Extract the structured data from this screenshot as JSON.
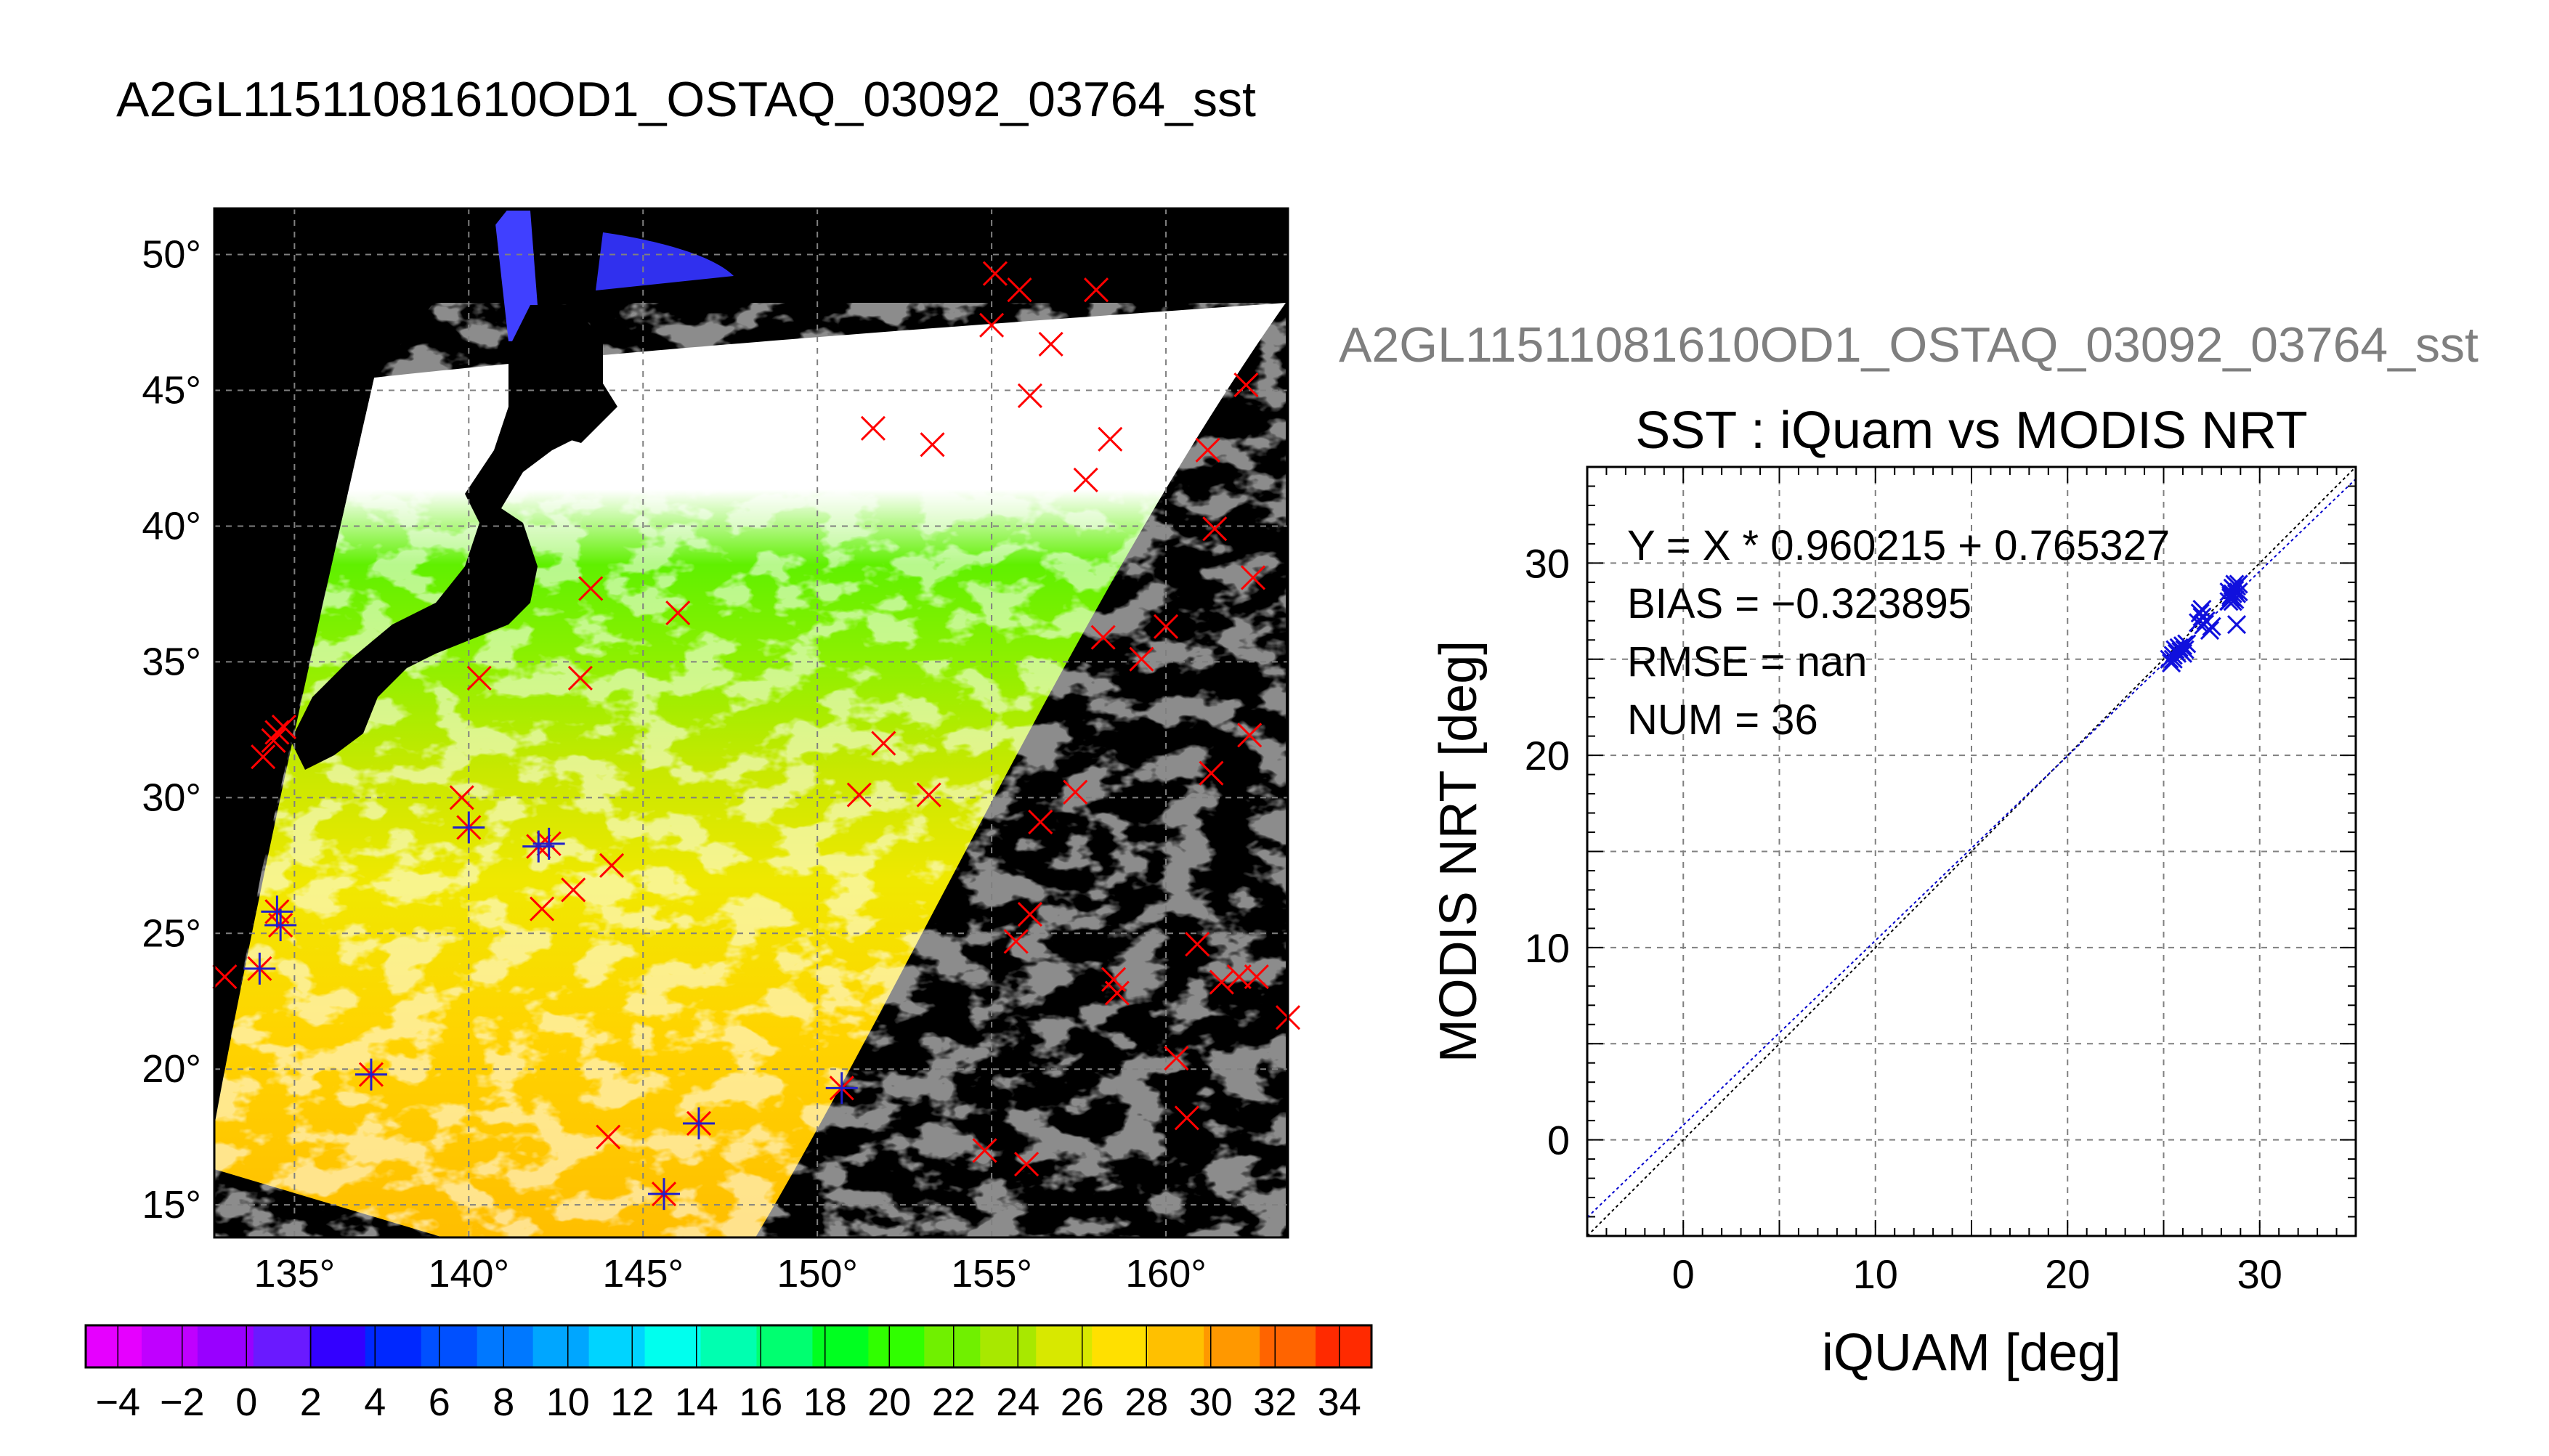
{
  "page_title": "A2GL11511081610OD1_OSTAQ_03092_03764_sst",
  "right_title": "A2GL11511081610OD1_OSTAQ_03092_03764_sst",
  "chart_data": [
    {
      "type": "map",
      "title": "A2GL11511081610OD1_OSTAQ_03092_03764_sst",
      "lon_range": [
        132.7,
        163.5
      ],
      "lat_range": [
        13.8,
        51.7
      ],
      "lon_ticks": [
        135,
        140,
        145,
        150,
        155,
        160
      ],
      "lat_ticks": [
        15,
        20,
        25,
        30,
        35,
        40,
        45,
        50
      ],
      "lon_tick_labels": [
        "135°",
        "140°",
        "145°",
        "150°",
        "155°",
        "160°"
      ],
      "lat_tick_labels": [
        "15°",
        "20°",
        "25°",
        "30°",
        "35°",
        "40°",
        "45°",
        "50°"
      ],
      "grid": true,
      "colorbar": {
        "min": -5,
        "max": 35,
        "step": 2,
        "tick_labels": [
          "−4",
          "−2",
          "0",
          "2",
          "4",
          "6",
          "8",
          "10",
          "12",
          "14",
          "16",
          "18",
          "20",
          "22",
          "24",
          "26",
          "28",
          "30",
          "32",
          "34"
        ],
        "colors": [
          "#e600ff",
          "#c000ff",
          "#9900ff",
          "#6a1aff",
          "#3300ff",
          "#0028ff",
          "#0050ff",
          "#0078ff",
          "#00a6ff",
          "#00d4ff",
          "#00ffee",
          "#00ffb0",
          "#00ff70",
          "#00ff20",
          "#30ff00",
          "#70f000",
          "#a8e800",
          "#d8e800",
          "#ffe000",
          "#ffc000",
          "#ff9800",
          "#ff6400",
          "#ff2a00"
        ]
      },
      "markers_x": [
        [
          133.0,
          23.4
        ],
        [
          134.0,
          23.7
        ],
        [
          134.5,
          25.8
        ],
        [
          134.6,
          25.3
        ],
        [
          134.1,
          31.5
        ],
        [
          134.4,
          32.1
        ],
        [
          134.7,
          32.6
        ],
        [
          134.5,
          32.4
        ],
        [
          137.2,
          19.8
        ],
        [
          139.8,
          30.0
        ],
        [
          140.0,
          28.9
        ],
        [
          140.3,
          34.4
        ],
        [
          142.0,
          28.2
        ],
        [
          142.3,
          28.3
        ],
        [
          142.1,
          25.9
        ],
        [
          143.0,
          26.6
        ],
        [
          143.2,
          34.4
        ],
        [
          143.5,
          37.7
        ],
        [
          144.1,
          27.5
        ],
        [
          144.0,
          17.5
        ],
        [
          145.6,
          15.4
        ],
        [
          146.0,
          36.8
        ],
        [
          146.6,
          18.0
        ],
        [
          150.7,
          19.3
        ],
        [
          151.2,
          30.1
        ],
        [
          151.6,
          43.6
        ],
        [
          151.9,
          32.0
        ],
        [
          153.2,
          30.1
        ],
        [
          153.3,
          43.0
        ],
        [
          154.8,
          17.0
        ],
        [
          155.1,
          49.3
        ],
        [
          155.0,
          47.4
        ],
        [
          155.8,
          48.7
        ],
        [
          155.7,
          24.7
        ],
        [
          156.0,
          16.5
        ],
        [
          156.1,
          44.8
        ],
        [
          156.1,
          25.7
        ],
        [
          156.4,
          29.1
        ],
        [
          156.7,
          46.7
        ],
        [
          157.4,
          30.2
        ],
        [
          157.7,
          41.7
        ],
        [
          158.0,
          48.7
        ],
        [
          158.2,
          35.9
        ],
        [
          158.4,
          43.2
        ],
        [
          158.5,
          23.3
        ],
        [
          158.6,
          22.8
        ],
        [
          159.3,
          35.1
        ],
        [
          160.0,
          36.3
        ],
        [
          160.3,
          20.4
        ],
        [
          160.6,
          18.2
        ],
        [
          160.9,
          24.6
        ],
        [
          161.2,
          42.8
        ],
        [
          161.3,
          30.9
        ],
        [
          161.4,
          39.9
        ],
        [
          161.6,
          23.2
        ],
        [
          162.1,
          23.4
        ],
        [
          162.3,
          45.2
        ],
        [
          162.4,
          32.3
        ],
        [
          162.5,
          38.1
        ],
        [
          162.6,
          23.4
        ],
        [
          163.5,
          21.9
        ]
      ],
      "markers_star": [
        [
          134.5,
          25.8
        ],
        [
          134.6,
          25.3
        ],
        [
          134.0,
          23.7
        ],
        [
          137.2,
          19.8
        ],
        [
          140.0,
          28.9
        ],
        [
          142.0,
          28.2
        ],
        [
          142.3,
          28.3
        ],
        [
          145.6,
          15.4
        ],
        [
          146.6,
          18.0
        ],
        [
          150.7,
          19.3
        ]
      ]
    },
    {
      "type": "scatter",
      "title": "SST : iQuam vs MODIS NRT",
      "xlabel": "iQUAM [deg]",
      "ylabel": "MODIS NRT [deg]",
      "xlim": [
        -5,
        35
      ],
      "ylim": [
        -5,
        35
      ],
      "x_ticks": [
        0,
        10,
        20,
        30
      ],
      "y_ticks": [
        0,
        10,
        20,
        30
      ],
      "grid": true,
      "stats": [
        "Y = X * 0.960215 + 0.765327",
        "BIAS = −0.323895",
        "RMSE = nan",
        "NUM = 36"
      ],
      "fit": {
        "slope": 0.960215,
        "intercept": 0.765327
      },
      "points": [
        [
          25.3,
          25.0
        ],
        [
          25.4,
          24.8
        ],
        [
          25.5,
          25.2
        ],
        [
          25.6,
          25.5
        ],
        [
          25.7,
          25.3
        ],
        [
          25.8,
          25.6
        ],
        [
          25.9,
          25.4
        ],
        [
          26.0,
          25.7
        ],
        [
          26.1,
          25.5
        ],
        [
          26.2,
          25.8
        ],
        [
          26.8,
          26.9
        ],
        [
          26.9,
          27.4
        ],
        [
          27.0,
          27.2
        ],
        [
          27.1,
          26.8
        ],
        [
          27.2,
          27.0
        ],
        [
          27.4,
          26.5
        ],
        [
          27.5,
          26.7
        ],
        [
          28.4,
          28.0
        ],
        [
          28.5,
          28.2
        ],
        [
          28.6,
          28.4
        ],
        [
          28.7,
          28.6
        ],
        [
          28.8,
          28.8
        ],
        [
          28.9,
          28.5
        ],
        [
          28.7,
          28.1
        ],
        [
          28.6,
          28.7
        ],
        [
          28.5,
          28.3
        ],
        [
          28.8,
          26.8
        ],
        [
          28.9,
          28.9
        ],
        [
          28.4,
          28.5
        ],
        [
          28.7,
          28.9
        ],
        [
          28.6,
          28.0
        ],
        [
          28.8,
          28.4
        ],
        [
          27.0,
          27.6
        ],
        [
          25.5,
          25.0
        ],
        [
          26.0,
          25.3
        ],
        [
          28.6,
          28.2
        ]
      ]
    }
  ]
}
